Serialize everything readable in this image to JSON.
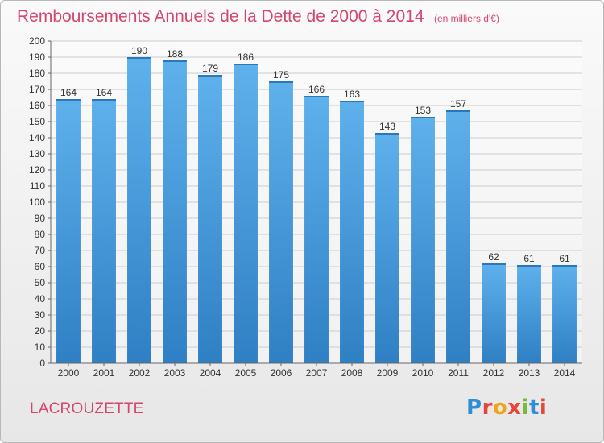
{
  "chart_data": {
    "type": "bar",
    "title": "Remboursements Annuels de la Dette de 2000 à 2014",
    "subtitle": "(en milliers d'€)",
    "categories": [
      "2000",
      "2001",
      "2002",
      "2003",
      "2004",
      "2005",
      "2006",
      "2007",
      "2008",
      "2009",
      "2010",
      "2011",
      "2012",
      "2013",
      "2014"
    ],
    "values": [
      164,
      164,
      190,
      188,
      179,
      186,
      175,
      166,
      163,
      143,
      153,
      157,
      62,
      61,
      61
    ],
    "ylim": [
      0,
      200
    ],
    "yticks": [
      0,
      10,
      20,
      30,
      40,
      50,
      60,
      70,
      80,
      90,
      100,
      110,
      120,
      130,
      140,
      150,
      160,
      170,
      180,
      190,
      200
    ],
    "grid": true,
    "bar_color": "#4a9fe0",
    "title_color": "#d3476f"
  },
  "footer": {
    "commune": "LACROUZETTE",
    "brand": "Proxiti",
    "brand_colors": [
      "#2e8fd6",
      "#f0a41c",
      "#7cb93a",
      "#e5473b"
    ]
  }
}
